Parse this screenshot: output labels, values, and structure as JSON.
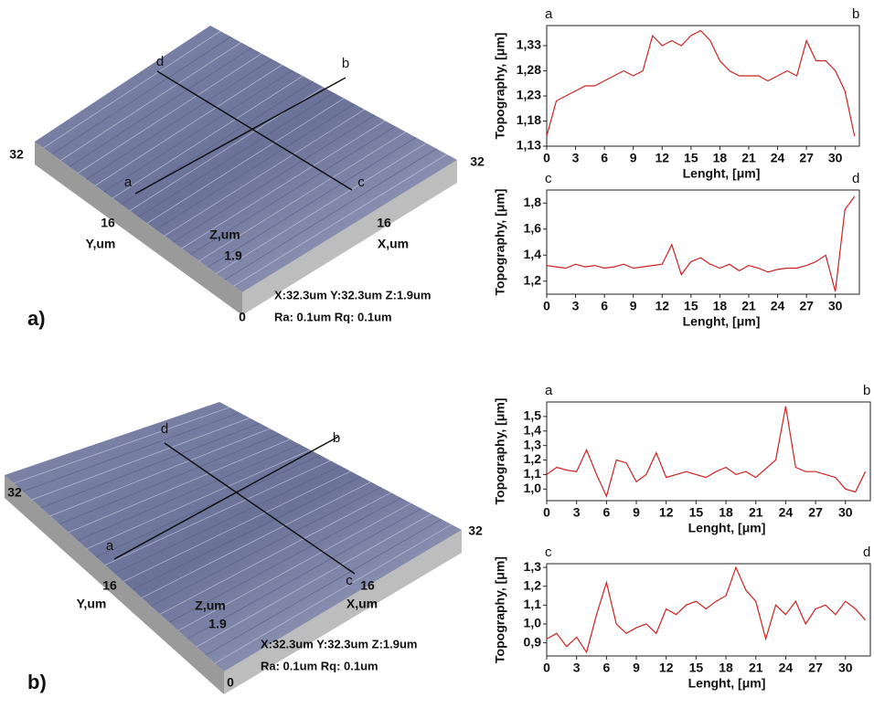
{
  "chart_data": [
    {
      "type": "line",
      "start_label": "a",
      "end_label": "b",
      "ylabel": "Topography, [μm]",
      "xlabel": "Lenght, [μm]",
      "x": [
        0,
        1,
        2,
        3,
        4,
        5,
        6,
        7,
        8,
        9,
        10,
        11,
        12,
        13,
        14,
        15,
        16,
        17,
        18,
        19,
        20,
        21,
        22,
        23,
        24,
        25,
        26,
        27,
        28,
        29,
        30,
        31,
        32
      ],
      "series": [
        {
          "color": "#cc2222",
          "values": [
            1.15,
            1.22,
            1.23,
            1.24,
            1.25,
            1.25,
            1.26,
            1.27,
            1.28,
            1.27,
            1.28,
            1.35,
            1.33,
            1.34,
            1.33,
            1.35,
            1.36,
            1.34,
            1.3,
            1.28,
            1.27,
            1.27,
            1.27,
            1.26,
            1.27,
            1.28,
            1.27,
            1.34,
            1.3,
            1.3,
            1.28,
            1.24,
            1.15
          ]
        }
      ],
      "xlim": [
        0,
        32.5
      ],
      "xticks": [
        0,
        3,
        6,
        9,
        12,
        15,
        18,
        21,
        24,
        27,
        30
      ],
      "ylim": [
        1.13,
        1.37
      ],
      "yticks": [
        {
          "value": 1.13,
          "label": "1,13"
        },
        {
          "value": 1.18,
          "label": "1,18"
        },
        {
          "value": 1.23,
          "label": "1,23"
        },
        {
          "value": 1.28,
          "label": "1,28"
        },
        {
          "value": 1.33,
          "label": "1,33"
        }
      ]
    },
    {
      "type": "line",
      "start_label": "c",
      "end_label": "d",
      "ylabel": "Topography, [μm]",
      "xlabel": "Lenght, [μm]",
      "x": [
        0,
        1,
        2,
        3,
        4,
        5,
        6,
        7,
        8,
        9,
        10,
        11,
        12,
        13,
        14,
        15,
        16,
        17,
        18,
        19,
        20,
        21,
        22,
        23,
        24,
        25,
        26,
        27,
        28,
        29,
        30,
        31,
        32
      ],
      "series": [
        {
          "color": "#cc2222",
          "values": [
            1.32,
            1.31,
            1.3,
            1.33,
            1.31,
            1.32,
            1.3,
            1.31,
            1.33,
            1.3,
            1.31,
            1.32,
            1.33,
            1.48,
            1.25,
            1.35,
            1.38,
            1.33,
            1.3,
            1.33,
            1.28,
            1.32,
            1.3,
            1.27,
            1.29,
            1.3,
            1.3,
            1.32,
            1.35,
            1.4,
            1.12,
            1.75,
            1.85
          ]
        }
      ],
      "xlim": [
        0,
        32.5
      ],
      "xticks": [
        0,
        3,
        6,
        9,
        12,
        15,
        18,
        21,
        24,
        27,
        30
      ],
      "ylim": [
        1.1,
        1.9
      ],
      "yticks": [
        {
          "value": 1.2,
          "label": "1,2"
        },
        {
          "value": 1.4,
          "label": "1,4"
        },
        {
          "value": 1.6,
          "label": "1,6"
        },
        {
          "value": 1.8,
          "label": "1,8"
        }
      ]
    },
    {
      "type": "line",
      "start_label": "a",
      "end_label": "b",
      "ylabel": "Topography, [μm]",
      "xlabel": "Lenght, [μm]",
      "x": [
        0,
        1,
        2,
        3,
        4,
        5,
        6,
        7,
        8,
        9,
        10,
        11,
        12,
        13,
        14,
        15,
        16,
        17,
        18,
        19,
        20,
        21,
        22,
        23,
        24,
        25,
        26,
        27,
        28,
        29,
        30,
        31,
        32
      ],
      "series": [
        {
          "color": "#cc2222",
          "values": [
            1.1,
            1.15,
            1.13,
            1.12,
            1.27,
            1.1,
            0.95,
            1.2,
            1.18,
            1.05,
            1.1,
            1.25,
            1.08,
            1.1,
            1.12,
            1.1,
            1.08,
            1.12,
            1.15,
            1.1,
            1.12,
            1.08,
            1.14,
            1.2,
            1.57,
            1.15,
            1.12,
            1.12,
            1.1,
            1.08,
            1.0,
            0.98,
            1.12
          ]
        }
      ],
      "xlim": [
        0,
        32.5
      ],
      "xticks": [
        0,
        3,
        6,
        9,
        12,
        15,
        18,
        21,
        24,
        27,
        30
      ],
      "ylim": [
        0.92,
        1.6
      ],
      "yticks": [
        {
          "value": 1.0,
          "label": "1,0"
        },
        {
          "value": 1.1,
          "label": "1,1"
        },
        {
          "value": 1.2,
          "label": "1,2"
        },
        {
          "value": 1.3,
          "label": "1,3"
        },
        {
          "value": 1.4,
          "label": "1,4"
        },
        {
          "value": 1.5,
          "label": "1,5"
        }
      ]
    },
    {
      "type": "line",
      "start_label": "c",
      "end_label": "d",
      "ylabel": "Topography, [μm]",
      "xlabel": "Lenght, [μm]",
      "x": [
        0,
        1,
        2,
        3,
        4,
        5,
        6,
        7,
        8,
        9,
        10,
        11,
        12,
        13,
        14,
        15,
        16,
        17,
        18,
        19,
        20,
        21,
        22,
        23,
        24,
        25,
        26,
        27,
        28,
        29,
        30,
        31,
        32
      ],
      "series": [
        {
          "color": "#cc2222",
          "values": [
            0.92,
            0.95,
            0.88,
            0.93,
            0.85,
            1.05,
            1.22,
            1.0,
            0.95,
            0.98,
            1.0,
            0.95,
            1.08,
            1.05,
            1.1,
            1.12,
            1.08,
            1.12,
            1.15,
            1.3,
            1.18,
            1.12,
            0.92,
            1.1,
            1.05,
            1.12,
            1.0,
            1.08,
            1.1,
            1.05,
            1.12,
            1.08,
            1.02
          ]
        }
      ],
      "xlim": [
        0,
        32.5
      ],
      "xticks": [
        0,
        3,
        6,
        9,
        12,
        15,
        18,
        21,
        24,
        27,
        30
      ],
      "ylim": [
        0.83,
        1.32
      ],
      "yticks": [
        {
          "value": 0.9,
          "label": "0,9"
        },
        {
          "value": 1.0,
          "label": "1,0"
        },
        {
          "value": 1.1,
          "label": "1,1"
        },
        {
          "value": 1.2,
          "label": "1,2"
        },
        {
          "value": 1.3,
          "label": "1,3"
        }
      ]
    }
  ],
  "panels": [
    {
      "label": "a)",
      "corners": [
        "d",
        "b",
        "a",
        "c"
      ],
      "y_max": "32",
      "x_max": "32",
      "y_mid": "16",
      "y_axis": "Y,um",
      "x_mid": "16",
      "x_axis": "X,um",
      "z_axis": "Z,um",
      "z_max": "1.9",
      "zero": "0",
      "dims": "X:32.3um  Y:32.3um  Z:1.9um",
      "roughness": "Ra: 0.1um  Rq: 0.1um"
    },
    {
      "label": "b)",
      "corners": [
        "d",
        "b",
        "a",
        "c"
      ],
      "y_max": "32",
      "x_max": "32",
      "y_mid": "16",
      "y_axis": "Y,um",
      "x_mid": "16",
      "x_axis": "X,um",
      "z_axis": "Z,um",
      "z_max": "1.9",
      "zero": "0",
      "dims": "X:32.3um  Y:32.3um  Z:1.9um",
      "roughness": "Ra: 0.1um  Rq: 0.1um"
    }
  ]
}
